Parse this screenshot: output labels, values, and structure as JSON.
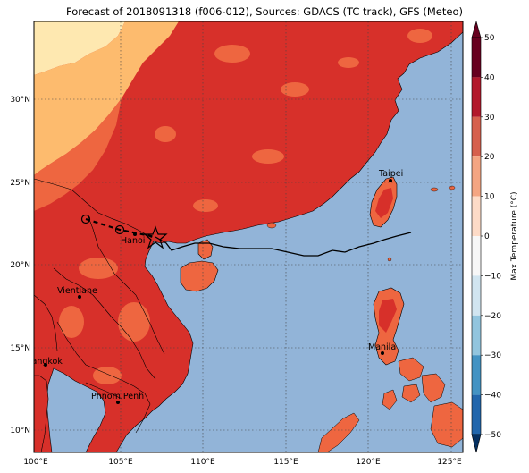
{
  "title": "Forecast of 2018091318 (f006-012), Sources: GDACS (TC track), GFS (Meteo)",
  "colorbar": {
    "label": "Max Temperature (°C)",
    "ticks": [
      "50",
      "40",
      "30",
      "20",
      "10",
      "0",
      "−10",
      "−20",
      "−30",
      "−40",
      "−50"
    ],
    "colors": [
      "#67001f",
      "#b2182b",
      "#d6604d",
      "#f4a582",
      "#fddbc7",
      "#f7f7f7",
      "#d1e5f0",
      "#92c5de",
      "#4393c3",
      "#2166ac",
      "#053061"
    ]
  },
  "axes": {
    "lon_labels": [
      "100°E",
      "105°E",
      "110°E",
      "115°E",
      "120°E",
      "125°E"
    ],
    "lat_labels": [
      "30°N",
      "25°N",
      "20°N",
      "15°N",
      "10°N"
    ]
  },
  "cities": [
    {
      "name": "Taipei"
    },
    {
      "name": "Hanoi"
    },
    {
      "name": "Vientiane"
    },
    {
      "name": "Manila"
    },
    {
      "name": "Bangkok"
    },
    {
      "name": "Phnom Penh"
    }
  ],
  "colors": {
    "sea": "#92b4d8",
    "land_hot": "#d7302a",
    "land_warm": "#ee6640",
    "land_mild": "#fdbb6e",
    "land_cool": "#fee8b0"
  }
}
